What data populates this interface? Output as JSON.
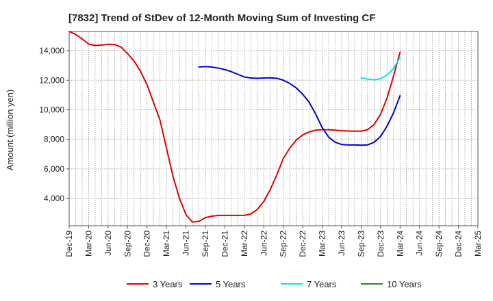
{
  "chart_data": {
    "type": "line",
    "title": "[7832]  Trend of StDev of 12-Month Moving Sum of Investing CF",
    "xlabel": "",
    "ylabel": "Amount (million yen)",
    "x_ticks": [
      "Dec-19",
      "Mar-20",
      "Jun-20",
      "Sep-20",
      "Dec-20",
      "Mar-21",
      "Jun-21",
      "Sep-21",
      "Dec-21",
      "Mar-22",
      "Jun-22",
      "Sep-22",
      "Dec-22",
      "Mar-23",
      "Jun-23",
      "Sep-23",
      "Dec-23",
      "Mar-24",
      "Jun-24",
      "Sep-24",
      "Dec-24",
      "Mar-25"
    ],
    "y_ticks": [
      4000,
      6000,
      8000,
      10000,
      12000,
      14000
    ],
    "y_tick_labels": [
      "4,000",
      "6,000",
      "8,000",
      "10,000",
      "12,000",
      "14,000"
    ],
    "ylim": [
      2150,
      15300
    ],
    "grid": true,
    "legend_position": "bottom",
    "series": [
      {
        "name": "3 Years",
        "color": "#e00000",
        "x": [
          "2019-12",
          "2020-01",
          "2020-02",
          "2020-03",
          "2020-04",
          "2020-05",
          "2020-06",
          "2020-07",
          "2020-08",
          "2020-09",
          "2020-10",
          "2020-11",
          "2020-12",
          "2021-01",
          "2021-02",
          "2021-03",
          "2021-04",
          "2021-05",
          "2021-06",
          "2021-07",
          "2021-08",
          "2021-09",
          "2021-10",
          "2021-11",
          "2021-12",
          "2022-01",
          "2022-02",
          "2022-03",
          "2022-04",
          "2022-05",
          "2022-06",
          "2022-07",
          "2022-08",
          "2022-09",
          "2022-10",
          "2022-11",
          "2022-12",
          "2023-01",
          "2023-02",
          "2023-03",
          "2023-04",
          "2023-05",
          "2023-06",
          "2023-07",
          "2023-08",
          "2023-09",
          "2023-10",
          "2023-11",
          "2023-12",
          "2024-01",
          "2024-02",
          "2024-03"
        ],
        "values": [
          15300,
          15100,
          14800,
          14450,
          14350,
          14380,
          14430,
          14420,
          14250,
          13800,
          13300,
          12600,
          11700,
          10500,
          9300,
          7400,
          5500,
          4000,
          2900,
          2400,
          2450,
          2700,
          2800,
          2850,
          2850,
          2850,
          2850,
          2850,
          2950,
          3250,
          3800,
          4600,
          5600,
          6700,
          7400,
          7950,
          8300,
          8500,
          8620,
          8650,
          8650,
          8620,
          8580,
          8560,
          8550,
          8550,
          8650,
          9000,
          9700,
          10800,
          12300,
          13900
        ]
      },
      {
        "name": "5 Years",
        "color": "#0000cc",
        "x": [
          "2021-08",
          "2021-09",
          "2021-10",
          "2021-11",
          "2021-12",
          "2022-01",
          "2022-02",
          "2022-03",
          "2022-04",
          "2022-05",
          "2022-06",
          "2022-07",
          "2022-08",
          "2022-09",
          "2022-10",
          "2022-11",
          "2022-12",
          "2023-01",
          "2023-02",
          "2023-03",
          "2023-04",
          "2023-05",
          "2023-06",
          "2023-07",
          "2023-08",
          "2023-09",
          "2023-10",
          "2023-11",
          "2023-12",
          "2024-01",
          "2024-02",
          "2024-03"
        ],
        "values": [
          12900,
          12920,
          12890,
          12820,
          12720,
          12580,
          12400,
          12220,
          12150,
          12130,
          12150,
          12160,
          12130,
          12000,
          11780,
          11480,
          11050,
          10500,
          9700,
          8800,
          8150,
          7800,
          7650,
          7620,
          7620,
          7600,
          7620,
          7800,
          8200,
          8900,
          9800,
          10950
        ]
      },
      {
        "name": "7 Years",
        "color": "#00e5ee",
        "x": [
          "2023-09",
          "2023-10",
          "2023-11",
          "2023-12",
          "2024-01",
          "2024-02",
          "2024-03"
        ],
        "values": [
          12150,
          12080,
          12030,
          12100,
          12350,
          12800,
          13550
        ]
      },
      {
        "name": "10 Years",
        "color": "#228b22",
        "x": [],
        "values": []
      }
    ]
  }
}
